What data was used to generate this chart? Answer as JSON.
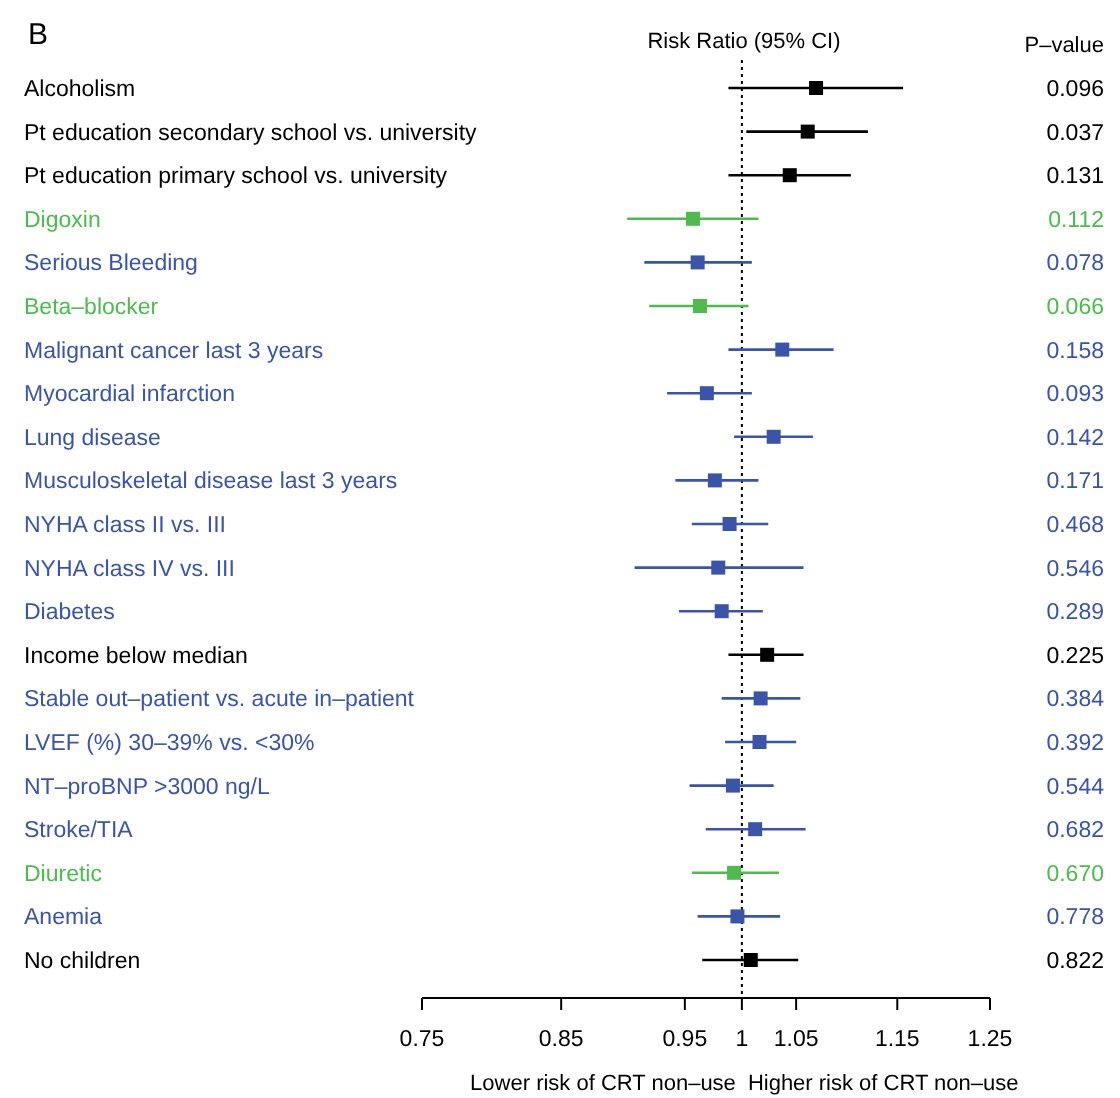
{
  "chart_data": {
    "type": "scatter",
    "orientation": "horizontal",
    "title": "B",
    "subtitle": "Risk Ratio (95% CI)",
    "y2label": "P–value",
    "categories": [
      "Alcoholism",
      "Pt education secondary school vs. university",
      "Pt education primary school vs. university",
      "Digoxin",
      "Serious Bleeding",
      "Beta–blocker",
      "Malignant cancer last 3 years",
      "Myocardial infarction",
      "Lung disease",
      "Musculoskeletal disease last 3 years",
      "NYHA class II vs. III",
      "NYHA class IV vs. III",
      "Diabetes",
      "Income below median",
      "Stable out–patient vs. acute in–patient",
      "LVEF (%) 30–39% vs. <30%",
      "NT–proBNP >3000 ng/L",
      "Stroke/TIA",
      "Diuretic",
      "Anemia",
      "No children"
    ],
    "y2_categories": [
      "0.096",
      "0.037",
      "0.131",
      "0.112",
      "0.078",
      "0.066",
      "0.158",
      "0.093",
      "0.142",
      "0.171",
      "0.468",
      "0.546",
      "0.289",
      "0.225",
      "0.384",
      "0.392",
      "0.544",
      "0.682",
      "0.670",
      "0.778",
      "0.822"
    ],
    "values": [
      1.069,
      1.061,
      1.044,
      0.957,
      0.961,
      0.963,
      1.037,
      0.969,
      1.029,
      0.976,
      0.989,
      0.979,
      0.982,
      1.023,
      1.017,
      1.016,
      0.992,
      1.012,
      0.993,
      0.996,
      1.008
    ],
    "errors": [
      [
        0.988,
        1.156
      ],
      [
        1.004,
        1.12
      ],
      [
        0.988,
        1.103
      ],
      [
        0.902,
        1.015
      ],
      [
        0.916,
        1.009
      ],
      [
        0.92,
        1.006
      ],
      [
        0.988,
        1.086
      ],
      [
        0.935,
        1.009
      ],
      [
        0.993,
        1.066
      ],
      [
        0.942,
        1.015
      ],
      [
        0.956,
        1.024
      ],
      [
        0.908,
        1.057
      ],
      [
        0.945,
        1.019
      ],
      [
        0.988,
        1.057
      ],
      [
        0.982,
        1.054
      ],
      [
        0.985,
        1.05
      ],
      [
        0.954,
        1.029
      ],
      [
        0.968,
        1.059
      ],
      [
        0.956,
        1.034
      ],
      [
        0.961,
        1.035
      ],
      [
        0.965,
        1.052
      ]
    ],
    "colors": [
      "#000000",
      "#000000",
      "#000000",
      "#4dbb4d",
      "#3a55a8",
      "#4dbb4d",
      "#3a55a8",
      "#3a55a8",
      "#3a55a8",
      "#3a55a8",
      "#3a55a8",
      "#3a55a8",
      "#3a55a8",
      "#000000",
      "#3a55a8",
      "#3a55a8",
      "#3a55a8",
      "#3a55a8",
      "#4dbb4d",
      "#3a55a8",
      "#000000"
    ],
    "xlim": [
      0.75,
      1.25
    ],
    "xticks": [
      0.75,
      0.85,
      0.95,
      1,
      1.05,
      1.15,
      1.25
    ],
    "log": "x",
    "marker": "square",
    "ref_lines": [
      {
        "axis": "x",
        "value": 1,
        "line_style": "dotted"
      }
    ],
    "annotations": [
      "Lower risk of CRT non–use",
      "Higher risk of CRT non–use"
    ]
  }
}
